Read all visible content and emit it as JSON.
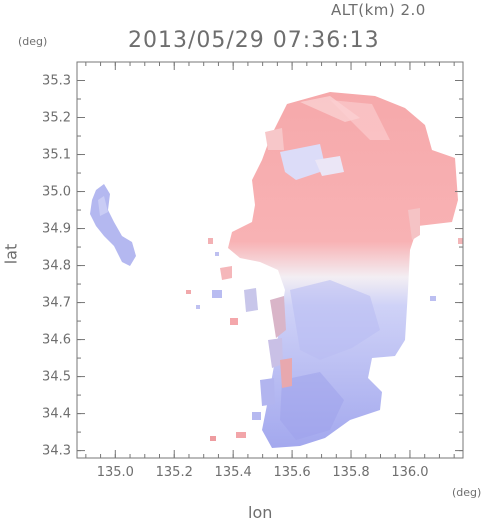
{
  "header": {
    "altitude_label": "ALT(km) 2.0",
    "datetime": "2013/05/29 07:36:13"
  },
  "axes": {
    "x_title": "lon",
    "y_title": "lat",
    "x_unit": "(deg)",
    "y_unit": "(deg)"
  },
  "chart_data": {
    "type": "heatmap",
    "xlabel": "lon",
    "ylabel": "lat",
    "xlim": [
      134.87,
      136.18
    ],
    "ylim": [
      34.28,
      35.35
    ],
    "x_ticks": [
      135.0,
      135.2,
      135.4,
      135.6,
      135.8,
      136.0
    ],
    "x_tick_labels": [
      "135.0",
      "135.2",
      "135.4",
      "135.6",
      "135.8",
      "136.0"
    ],
    "y_ticks": [
      34.3,
      34.4,
      34.5,
      34.6,
      34.7,
      34.8,
      34.9,
      35.0,
      35.1,
      35.2,
      35.3
    ],
    "y_tick_labels": [
      "34.3",
      "34.4",
      "34.5",
      "34.6",
      "34.7",
      "34.8",
      "34.9",
      "35.0",
      "35.1",
      "35.2",
      "35.3"
    ],
    "colors": {
      "positive": "#f7a0a4",
      "negative": "#a7acf2",
      "zero": "#ffffff"
    },
    "field_description": "radial velocity field: receding (red) in north, approaching (blue) in south, small echo near lon 135.0 lat 34.85"
  }
}
